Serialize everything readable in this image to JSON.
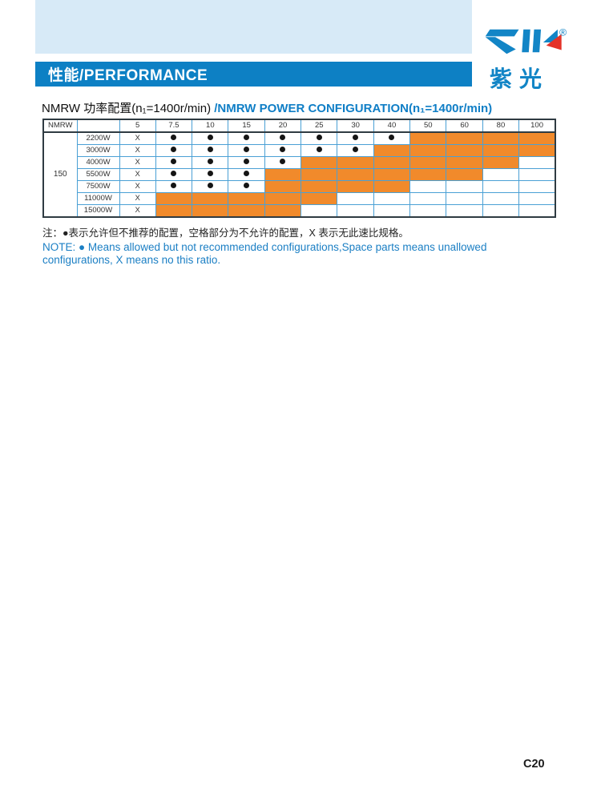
{
  "banner": {
    "label": "性能/PERFORMANCE"
  },
  "logo": {
    "brand": "ZIK",
    "registered": "®",
    "cn": "紫光",
    "blue": "#1285c6",
    "red": "#e43228"
  },
  "title": {
    "cn": "NMRW 功率配置(n₁=1400r/min) ",
    "en": "/NMRW POWER CONFIGURATION(n₁=1400r/min)"
  },
  "table": {
    "corner_label": "NMRW",
    "model": "150",
    "ratio_headers": [
      "5",
      "7.5",
      "10",
      "15",
      "20",
      "25",
      "30",
      "40",
      "50",
      "60",
      "80",
      "100"
    ],
    "rows": [
      {
        "power": "2200W",
        "cells": [
          "X",
          "dot",
          "dot",
          "dot",
          "dot",
          "dot",
          "dot",
          "dot",
          "orange",
          "orange",
          "orange",
          "orange"
        ]
      },
      {
        "power": "3000W",
        "cells": [
          "X",
          "dot",
          "dot",
          "dot",
          "dot",
          "dot",
          "dot",
          "orange",
          "orange",
          "orange",
          "orange",
          "orange"
        ]
      },
      {
        "power": "4000W",
        "cells": [
          "X",
          "dot",
          "dot",
          "dot",
          "dot",
          "orange",
          "orange",
          "orange",
          "orange",
          "orange",
          "orange",
          ""
        ]
      },
      {
        "power": "5500W",
        "cells": [
          "X",
          "dot",
          "dot",
          "dot",
          "orange",
          "orange",
          "orange",
          "orange",
          "orange",
          "orange",
          "",
          ""
        ]
      },
      {
        "power": "7500W",
        "cells": [
          "X",
          "dot",
          "dot",
          "dot",
          "orange",
          "orange",
          "orange",
          "orange",
          "",
          "",
          "",
          ""
        ]
      },
      {
        "power": "11000W",
        "cells": [
          "X",
          "orange",
          "orange",
          "orange",
          "orange",
          "orange",
          "",
          "",
          "",
          "",
          "",
          ""
        ]
      },
      {
        "power": "15000W",
        "cells": [
          "X",
          "orange",
          "orange",
          "orange",
          "orange",
          "",
          "",
          "",
          "",
          "",
          "",
          ""
        ]
      }
    ],
    "legend": {
      "dot": "●",
      "x": "X"
    },
    "orange_color": "#f18a2b",
    "grid_color": "#4aa0d5"
  },
  "notes": {
    "cn": "注：●表示允许但不推荐的配置，空格部分为不允许的配置，X 表示无此速比规格。",
    "en_line1": "NOTE: ● Means allowed but not recommended configurations,Space parts means unallowed",
    "en_line2": "configurations, X means no this ratio."
  },
  "page": {
    "number": "C20"
  }
}
